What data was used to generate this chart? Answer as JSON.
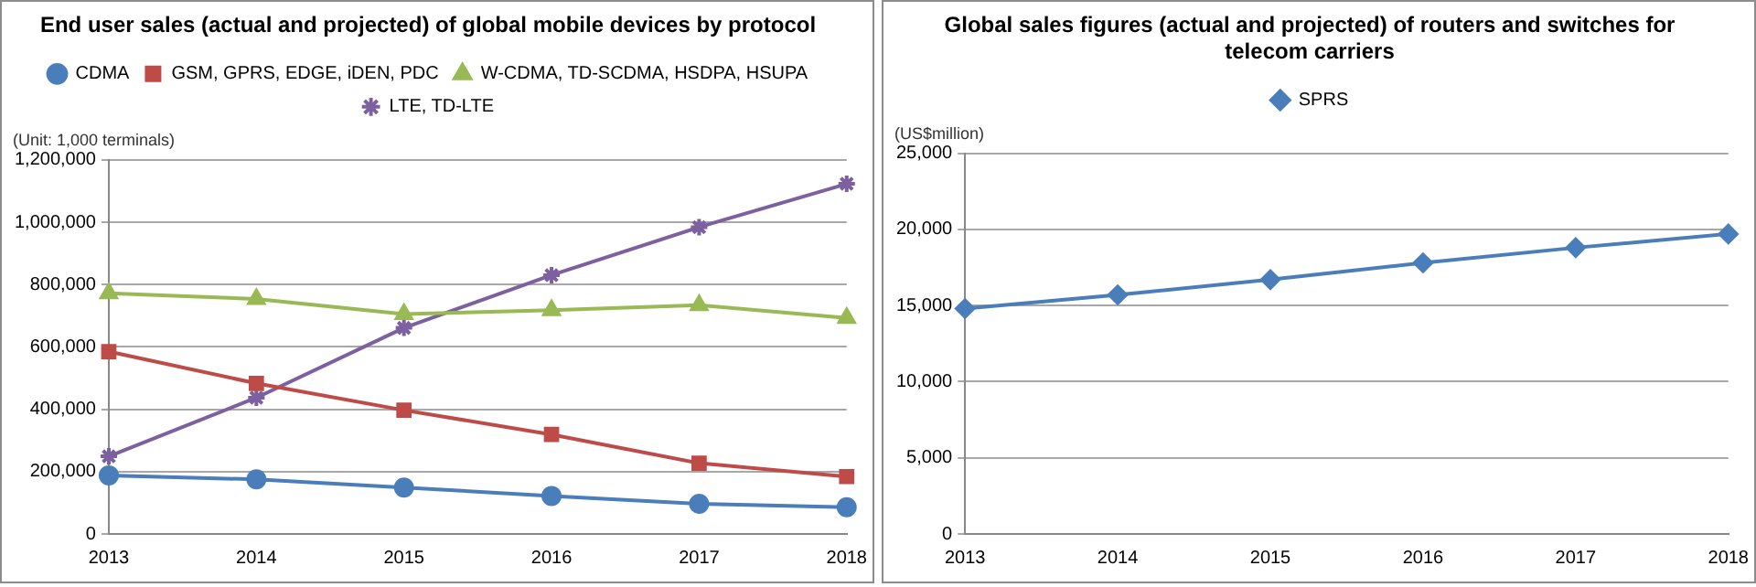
{
  "chart_data": [
    {
      "type": "line",
      "title": "End user sales (actual and projected) of global mobile devices by protocol",
      "ylabel": "(Unit: 1,000 terminals)",
      "categories": [
        "2013",
        "2014",
        "2015",
        "2016",
        "2017",
        "2018"
      ],
      "series": [
        {
          "name": "CDMA",
          "color": "#4a7ebb",
          "marker": "circle",
          "values": [
            188000,
            175000,
            149000,
            122000,
            97000,
            86000
          ]
        },
        {
          "name": "GSM, GPRS, EDGE, iDEN, PDC",
          "color": "#be4b48",
          "marker": "square",
          "values": [
            585000,
            483000,
            397000,
            319000,
            227000,
            184000
          ]
        },
        {
          "name": "W-CDMA, TD-SCDMA, HSDPA, HSUPA",
          "color": "#98b954",
          "marker": "triangle",
          "values": [
            772000,
            754000,
            705000,
            718000,
            734000,
            693000
          ]
        },
        {
          "name": "LTE, TD-LTE",
          "color": "#7d60a0",
          "marker": "cross",
          "values": [
            249000,
            437000,
            661000,
            830000,
            984000,
            1123000
          ]
        }
      ],
      "ylim": [
        0,
        1200000
      ],
      "yticks": [
        0,
        {
          "value": 200000,
          "label": "200,000"
        },
        {
          "value": 400000,
          "label": "400,000"
        },
        {
          "value": 600000,
          "label": "600,000"
        },
        {
          "value": 800000,
          "label": "800,000"
        },
        {
          "value": 1000000,
          "label": "1,000,000"
        },
        {
          "value": 1200000,
          "label": "1,200,000"
        }
      ],
      "grid": "y",
      "legend": "top"
    },
    {
      "type": "line",
      "title": "Global sales figures (actual and projected) of routers and switches for telecom carriers",
      "ylabel": "(US$million)",
      "categories": [
        "2013",
        "2014",
        "2015",
        "2016",
        "2017",
        "2018"
      ],
      "series": [
        {
          "name": "SPRS",
          "color": "#4a7ebb",
          "marker": "diamond",
          "values": [
            14800,
            15700,
            16700,
            17800,
            18800,
            19700
          ]
        }
      ],
      "ylim": [
        0,
        25000
      ],
      "yticks": [
        0,
        {
          "value": 5000,
          "label": "5,000"
        },
        {
          "value": 10000,
          "label": "10,000"
        },
        {
          "value": 15000,
          "label": "15,000"
        },
        {
          "value": 20000,
          "label": "20,000"
        },
        {
          "value": 25000,
          "label": "25,000"
        }
      ],
      "grid": "y",
      "legend": "top"
    }
  ]
}
